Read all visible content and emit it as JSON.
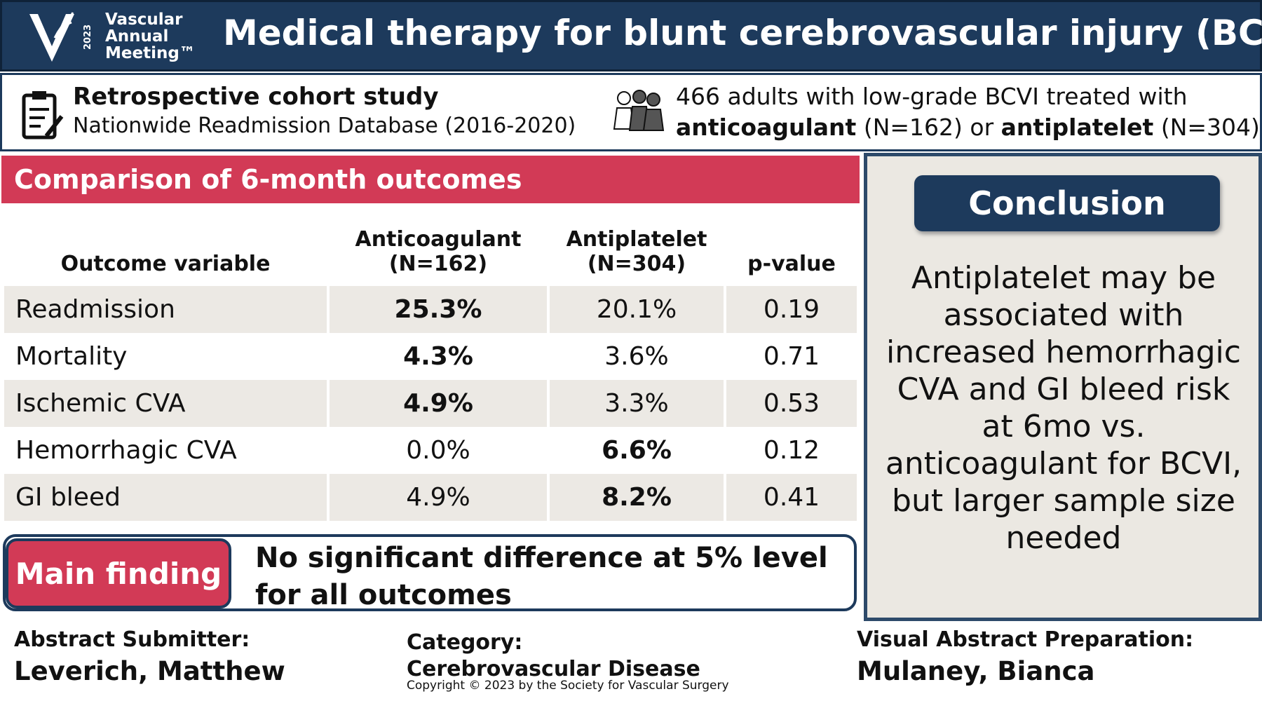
{
  "header": {
    "logo": {
      "year": "2023",
      "lines": [
        "Vascular",
        "Annual",
        "Meeting™"
      ]
    },
    "title": "Medical therapy for blunt cerebrovascular injury (BCVI)"
  },
  "study": {
    "design": "Retrospective cohort study",
    "source": "Nationwide Readmission Database (2016-2020)",
    "population": {
      "line1": "466 adults with low-grade BCVI treated with",
      "group1": "anticoagulant",
      "group1_n": "(N=162) or",
      "group2": "antiplatelet",
      "group2_n": "(N=304)"
    }
  },
  "comparison": {
    "title": "Comparison of 6-month outcomes",
    "table": {
      "header": [
        "Outcome variable",
        "Anticoagulant\n(N=162)",
        "Antiplatelet\n(N=304)",
        "p-value"
      ],
      "rows": [
        [
          "Readmission",
          "25.3%",
          "20.1%",
          "0.19"
        ],
        [
          "Mortality",
          "4.3%",
          "3.6%",
          "0.71"
        ],
        [
          "Ischemic CVA",
          "4.9%",
          "3.3%",
          "0.53"
        ],
        [
          "Hemorrhagic CVA",
          "0.0%",
          "6.6%",
          "0.12"
        ],
        [
          "GI bleed",
          "4.9%",
          "8.2%",
          "0.41"
        ]
      ]
    },
    "main_finding": {
      "label": "Main finding",
      "text": "No significant difference at 5% level for all outcomes"
    }
  },
  "conclusion": {
    "title": "Conclusion",
    "text": "Antiplatelet may be associated with increased hemorrhagic CVA and GI bleed risk at 6mo vs. anticoagulant for BCVI, but larger sample size needed"
  },
  "footer": {
    "submitter_label": "Abstract Submitter:",
    "submitter": "Leverich, Matthew",
    "category": "Category: Cerebrovascular Disease",
    "copyright": "Copyright © 2023 by the Society for Vascular Surgery",
    "preparer_label": "Visual Abstract Preparation:",
    "preparer": "Mulaney, Bianca"
  }
}
